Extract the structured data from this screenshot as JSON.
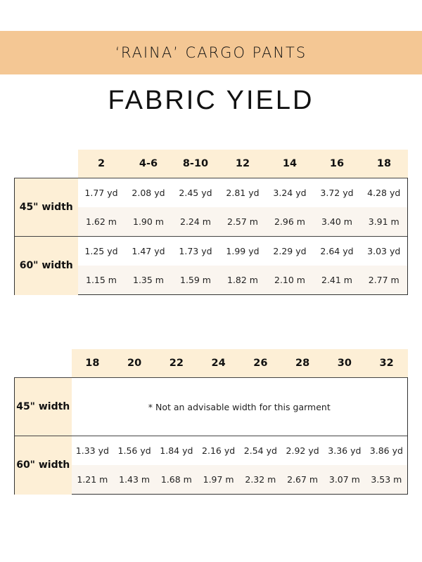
{
  "header": {
    "pattern_name": "‘RAINA’ CARGO PANTS",
    "title": "FABRIC YIELD"
  },
  "colors": {
    "banner": "#f4c794",
    "header_fill": "#fdefd6",
    "metric_row_fill": "#faf5ef"
  },
  "table1": {
    "sizes": [
      "2",
      "4-6",
      "8-10",
      "12",
      "14",
      "16",
      "18"
    ],
    "rows": [
      {
        "label": "45\" width",
        "yd": [
          "1.77 yd",
          "2.08 yd",
          "2.45 yd",
          "2.81 yd",
          "3.24 yd",
          "3.72 yd",
          "4.28 yd"
        ],
        "m": [
          "1.62 m",
          "1.90 m",
          "2.24 m",
          "2.57 m",
          "2.96 m",
          "3.40 m",
          "3.91 m"
        ]
      },
      {
        "label": "60\" width",
        "yd": [
          "1.25 yd",
          "1.47 yd",
          "1.73 yd",
          "1.99 yd",
          "2.29 yd",
          "2.64 yd",
          "3.03 yd"
        ],
        "m": [
          "1.15 m",
          "1.35 m",
          "1.59 m",
          "1.82 m",
          "2.10 m",
          "2.41 m",
          "2.77 m"
        ]
      }
    ]
  },
  "table2": {
    "sizes": [
      "18",
      "20",
      "22",
      "24",
      "26",
      "28",
      "30",
      "32"
    ],
    "row45": {
      "label": "45\" width",
      "note": "* Not an advisable width for this garment"
    },
    "row60": {
      "label": "60\" width",
      "yd": [
        "1.33 yd",
        "1.56 yd",
        "1.84 yd",
        "2.16 yd",
        "2.54 yd",
        "2.92 yd",
        "3.36 yd",
        "3.86 yd"
      ],
      "m": [
        "1.21 m",
        "1.43 m",
        "1.68 m",
        "1.97 m",
        "2.32 m",
        "2.67 m",
        "3.07 m",
        "3.53 m"
      ]
    }
  }
}
